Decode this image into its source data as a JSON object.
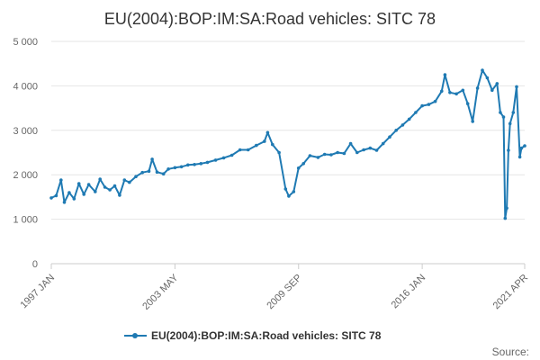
{
  "chart_data": {
    "type": "line",
    "title": "EU(2004):BOP:IM:SA:Road vehicles: SITC 78",
    "xlabel": "",
    "ylabel": "",
    "ylim": [
      0,
      5000
    ],
    "y_ticks": [
      0,
      1000,
      2000,
      3000,
      4000,
      5000
    ],
    "y_tick_labels": [
      "0",
      "1 000",
      "2 000",
      "3 000",
      "4 000",
      "5 000"
    ],
    "x_range": [
      "1997-01",
      "2021-04"
    ],
    "x_ticks": [
      "1997-01",
      "2003-05",
      "2009-09",
      "2016-01",
      "2021-04"
    ],
    "x_tick_labels": [
      "1997 JAN",
      "2003 MAY",
      "2009 SEP",
      "2016 JAN",
      "2021 APR"
    ],
    "grid": "horizontal",
    "legend_position": "bottom",
    "series": [
      {
        "name": "EU(2004):BOP:IM:SA:Road vehicles: SITC 78",
        "color": "#1f7ab3",
        "points": [
          [
            "1997-01",
            1480
          ],
          [
            "1997-04",
            1530
          ],
          [
            "1997-07",
            1880
          ],
          [
            "1997-09",
            1380
          ],
          [
            "1997-12",
            1600
          ],
          [
            "1998-03",
            1460
          ],
          [
            "1998-06",
            1800
          ],
          [
            "1998-09",
            1560
          ],
          [
            "1998-12",
            1780
          ],
          [
            "1999-04",
            1620
          ],
          [
            "1999-07",
            1900
          ],
          [
            "1999-10",
            1720
          ],
          [
            "2000-01",
            1660
          ],
          [
            "2000-04",
            1750
          ],
          [
            "2000-07",
            1540
          ],
          [
            "2000-10",
            1880
          ],
          [
            "2001-01",
            1830
          ],
          [
            "2001-05",
            1960
          ],
          [
            "2001-09",
            2050
          ],
          [
            "2002-01",
            2080
          ],
          [
            "2002-03",
            2350
          ],
          [
            "2002-06",
            2060
          ],
          [
            "2002-10",
            2020
          ],
          [
            "2003-01",
            2130
          ],
          [
            "2003-05",
            2160
          ],
          [
            "2003-09",
            2180
          ],
          [
            "2004-01",
            2220
          ],
          [
            "2004-05",
            2230
          ],
          [
            "2004-09",
            2250
          ],
          [
            "2005-01",
            2280
          ],
          [
            "2005-06",
            2330
          ],
          [
            "2005-11",
            2380
          ],
          [
            "2006-04",
            2440
          ],
          [
            "2006-09",
            2560
          ],
          [
            "2007-02",
            2560
          ],
          [
            "2007-07",
            2660
          ],
          [
            "2007-12",
            2750
          ],
          [
            "2008-02",
            2950
          ],
          [
            "2008-05",
            2680
          ],
          [
            "2008-09",
            2500
          ],
          [
            "2009-01",
            1680
          ],
          [
            "2009-03",
            1520
          ],
          [
            "2009-06",
            1620
          ],
          [
            "2009-09",
            2150
          ],
          [
            "2009-12",
            2250
          ],
          [
            "2010-04",
            2430
          ],
          [
            "2010-09",
            2390
          ],
          [
            "2011-01",
            2460
          ],
          [
            "2011-05",
            2450
          ],
          [
            "2011-09",
            2500
          ],
          [
            "2012-01",
            2480
          ],
          [
            "2012-05",
            2700
          ],
          [
            "2012-09",
            2500
          ],
          [
            "2013-01",
            2560
          ],
          [
            "2013-05",
            2600
          ],
          [
            "2013-09",
            2550
          ],
          [
            "2014-01",
            2700
          ],
          [
            "2014-05",
            2850
          ],
          [
            "2014-09",
            3000
          ],
          [
            "2015-01",
            3120
          ],
          [
            "2015-05",
            3250
          ],
          [
            "2015-09",
            3400
          ],
          [
            "2016-01",
            3550
          ],
          [
            "2016-05",
            3580
          ],
          [
            "2016-09",
            3650
          ],
          [
            "2017-01",
            3880
          ],
          [
            "2017-03",
            4250
          ],
          [
            "2017-06",
            3850
          ],
          [
            "2017-10",
            3820
          ],
          [
            "2018-02",
            3900
          ],
          [
            "2018-05",
            3600
          ],
          [
            "2018-08",
            3200
          ],
          [
            "2018-11",
            3950
          ],
          [
            "2019-02",
            4350
          ],
          [
            "2019-05",
            4180
          ],
          [
            "2019-08",
            3900
          ],
          [
            "2019-11",
            4050
          ],
          [
            "2020-01",
            3400
          ],
          [
            "2020-03",
            3300
          ],
          [
            "2020-04",
            1020
          ],
          [
            "2020-05",
            1250
          ],
          [
            "2020-06",
            2550
          ],
          [
            "2020-07",
            3150
          ],
          [
            "2020-09",
            3400
          ],
          [
            "2020-11",
            3980
          ],
          [
            "2021-01",
            2400
          ],
          [
            "2021-02",
            2600
          ],
          [
            "2021-04",
            2650
          ]
        ]
      }
    ],
    "source_label": "Source:"
  }
}
